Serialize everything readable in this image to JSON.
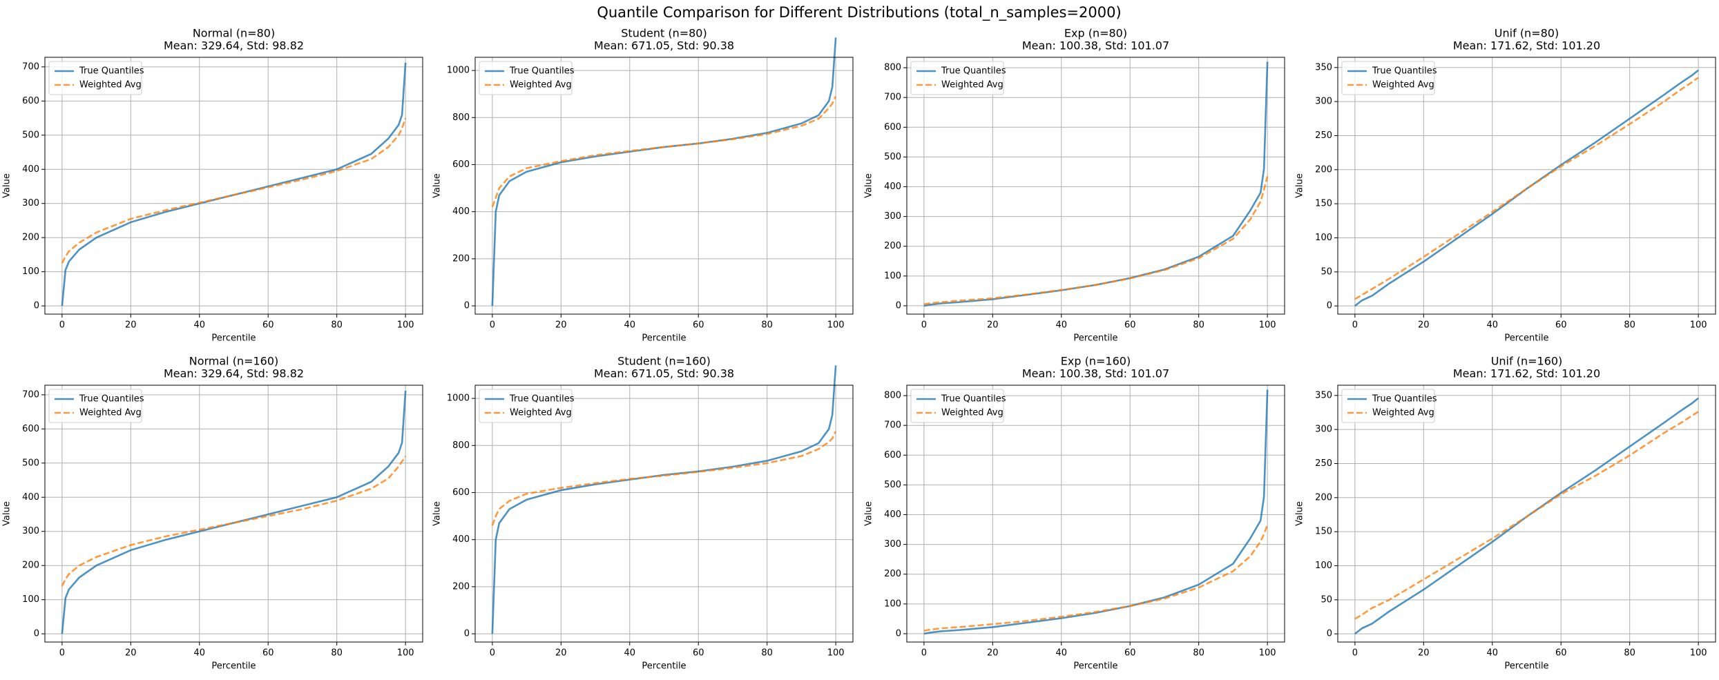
{
  "title": "Quantile Comparison for Different Distributions (total_n_samples=2000)",
  "chart_data": [
    {
      "type": "line",
      "title": "Normal (n=80)",
      "subtitle": "Mean: 329.64, Std: 98.82",
      "x_label": "Percentile",
      "y_label": "Value",
      "x": [
        0,
        1,
        2,
        5,
        10,
        20,
        30,
        40,
        50,
        60,
        70,
        80,
        90,
        95,
        98,
        99,
        100
      ],
      "series": [
        {
          "name": "True Quantiles",
          "color": "#1f77b4",
          "linestyle": "solid",
          "values": [
            0,
            105,
            130,
            165,
            200,
            245,
            275,
            300,
            325,
            350,
            375,
            400,
            445,
            490,
            530,
            560,
            712
          ]
        },
        {
          "name": "Weighted Avg",
          "color": "#ff7f0e",
          "linestyle": "dashed",
          "values": [
            125,
            145,
            160,
            185,
            215,
            255,
            280,
            302,
            325,
            347,
            370,
            395,
            430,
            465,
            500,
            520,
            550
          ]
        }
      ],
      "xlim": [
        -5,
        105
      ],
      "xticks": [
        0,
        20,
        40,
        60,
        80,
        100
      ],
      "ylim": [
        -24,
        728
      ],
      "yticks": [
        0,
        100,
        200,
        300,
        400,
        500,
        600,
        700
      ],
      "grid": true,
      "legend": "upper left"
    },
    {
      "type": "line",
      "title": "Student (n=80)",
      "subtitle": "Mean: 671.05, Std: 90.38",
      "x_label": "Percentile",
      "y_label": "Value",
      "x": [
        0,
        1,
        2,
        5,
        10,
        20,
        30,
        40,
        50,
        60,
        70,
        80,
        90,
        95,
        98,
        99,
        100
      ],
      "series": [
        {
          "name": "True Quantiles",
          "color": "#1f77b4",
          "linestyle": "solid",
          "values": [
            0,
            400,
            470,
            530,
            570,
            610,
            635,
            655,
            675,
            690,
            710,
            735,
            775,
            810,
            870,
            930,
            1140
          ]
        },
        {
          "name": "Weighted Avg",
          "color": "#ff7f0e",
          "linestyle": "dashed",
          "values": [
            420,
            460,
            500,
            550,
            585,
            615,
            640,
            658,
            675,
            690,
            708,
            730,
            765,
            795,
            840,
            860,
            890
          ]
        }
      ],
      "xlim": [
        -5,
        105
      ],
      "xticks": [
        0,
        20,
        40,
        60,
        80,
        100
      ],
      "ylim": [
        -35,
        1056
      ],
      "yticks": [
        0,
        200,
        400,
        600,
        800,
        1000
      ],
      "grid": true,
      "legend": "upper left"
    },
    {
      "type": "line",
      "title": "Exp (n=80)",
      "subtitle": "Mean: 100.38, Std: 101.07",
      "x_label": "Percentile",
      "y_label": "Value",
      "x": [
        0,
        1,
        2,
        5,
        10,
        20,
        30,
        40,
        50,
        60,
        70,
        80,
        90,
        95,
        98,
        99,
        100
      ],
      "series": [
        {
          "name": "True Quantiles",
          "color": "#1f77b4",
          "linestyle": "solid",
          "values": [
            0,
            2,
            4,
            8,
            12,
            22,
            37,
            52,
            70,
            93,
            122,
            165,
            235,
            320,
            380,
            460,
            820
          ]
        },
        {
          "name": "Weighted Avg",
          "color": "#ff7f0e",
          "linestyle": "dashed",
          "values": [
            5,
            7,
            9,
            12,
            17,
            25,
            38,
            53,
            70,
            92,
            120,
            160,
            225,
            290,
            350,
            390,
            435
          ]
        }
      ],
      "xlim": [
        -5,
        105
      ],
      "xticks": [
        0,
        20,
        40,
        60,
        80,
        100
      ],
      "ylim": [
        -28,
        835
      ],
      "yticks": [
        0,
        100,
        200,
        300,
        400,
        500,
        600,
        700,
        800
      ],
      "grid": true,
      "legend": "upper left"
    },
    {
      "type": "line",
      "title": "Unif (n=80)",
      "subtitle": "Mean: 171.62, Std: 101.20",
      "x_label": "Percentile",
      "y_label": "Value",
      "x": [
        0,
        1,
        2,
        5,
        10,
        20,
        30,
        40,
        50,
        60,
        70,
        80,
        90,
        95,
        98,
        99,
        100
      ],
      "series": [
        {
          "name": "True Quantiles",
          "color": "#1f77b4",
          "linestyle": "solid",
          "values": [
            0,
            4,
            8,
            15,
            33,
            65,
            100,
            135,
            172,
            207,
            240,
            275,
            310,
            328,
            338,
            342,
            346
          ]
        },
        {
          "name": "Weighted Avg",
          "color": "#ff7f0e",
          "linestyle": "dashed",
          "values": [
            10,
            13,
            16,
            25,
            40,
            72,
            105,
            138,
            172,
            205,
            235,
            267,
            300,
            318,
            328,
            332,
            335
          ]
        }
      ],
      "xlim": [
        -5,
        105
      ],
      "xticks": [
        0,
        20,
        40,
        60,
        80,
        100
      ],
      "ylim": [
        -12,
        365
      ],
      "yticks": [
        0,
        50,
        100,
        150,
        200,
        250,
        300,
        350
      ],
      "grid": true,
      "legend": "upper left"
    },
    {
      "type": "line",
      "title": "Normal (n=160)",
      "subtitle": "Mean: 329.64, Std: 98.82",
      "x_label": "Percentile",
      "y_label": "Value",
      "x": [
        0,
        1,
        2,
        5,
        10,
        20,
        30,
        40,
        50,
        60,
        70,
        80,
        90,
        95,
        98,
        99,
        100
      ],
      "series": [
        {
          "name": "True Quantiles",
          "color": "#1f77b4",
          "linestyle": "solid",
          "values": [
            0,
            105,
            130,
            165,
            200,
            245,
            275,
            300,
            325,
            350,
            375,
            400,
            445,
            490,
            530,
            560,
            712
          ]
        },
        {
          "name": "Weighted Avg",
          "color": "#ff7f0e",
          "linestyle": "dashed",
          "values": [
            140,
            160,
            175,
            200,
            225,
            260,
            285,
            305,
            325,
            345,
            365,
            390,
            425,
            455,
            490,
            505,
            520
          ]
        }
      ],
      "xlim": [
        -5,
        105
      ],
      "xticks": [
        0,
        20,
        40,
        60,
        80,
        100
      ],
      "ylim": [
        -24,
        728
      ],
      "yticks": [
        0,
        100,
        200,
        300,
        400,
        500,
        600,
        700
      ],
      "grid": true,
      "legend": "upper left"
    },
    {
      "type": "line",
      "title": "Student (n=160)",
      "subtitle": "Mean: 671.05, Std: 90.38",
      "x_label": "Percentile",
      "y_label": "Value",
      "x": [
        0,
        1,
        2,
        5,
        10,
        20,
        30,
        40,
        50,
        60,
        70,
        80,
        90,
        95,
        98,
        99,
        100
      ],
      "series": [
        {
          "name": "True Quantiles",
          "color": "#1f77b4",
          "linestyle": "solid",
          "values": [
            0,
            400,
            470,
            530,
            570,
            610,
            635,
            655,
            675,
            690,
            710,
            735,
            775,
            810,
            870,
            930,
            1140
          ]
        },
        {
          "name": "Weighted Avg",
          "color": "#ff7f0e",
          "linestyle": "dashed",
          "values": [
            460,
            500,
            530,
            565,
            595,
            620,
            640,
            658,
            672,
            688,
            705,
            725,
            755,
            785,
            815,
            830,
            860
          ]
        }
      ],
      "xlim": [
        -5,
        105
      ],
      "xticks": [
        0,
        20,
        40,
        60,
        80,
        100
      ],
      "ylim": [
        -35,
        1056
      ],
      "yticks": [
        0,
        200,
        400,
        600,
        800,
        1000
      ],
      "grid": true,
      "legend": "upper left"
    },
    {
      "type": "line",
      "title": "Exp (n=160)",
      "subtitle": "Mean: 100.38, Std: 101.07",
      "x_label": "Percentile",
      "y_label": "Value",
      "x": [
        0,
        1,
        2,
        5,
        10,
        20,
        30,
        40,
        50,
        60,
        70,
        80,
        90,
        95,
        98,
        99,
        100
      ],
      "series": [
        {
          "name": "True Quantiles",
          "color": "#1f77b4",
          "linestyle": "solid",
          "values": [
            0,
            2,
            4,
            8,
            12,
            22,
            37,
            52,
            70,
            93,
            122,
            165,
            235,
            320,
            380,
            460,
            820
          ]
        },
        {
          "name": "Weighted Avg",
          "color": "#ff7f0e",
          "linestyle": "dashed",
          "values": [
            10,
            12,
            14,
            18,
            22,
            32,
            43,
            57,
            73,
            93,
            118,
            155,
            210,
            260,
            310,
            335,
            365
          ]
        }
      ],
      "xlim": [
        -5,
        105
      ],
      "xticks": [
        0,
        20,
        40,
        60,
        80,
        100
      ],
      "ylim": [
        -28,
        835
      ],
      "yticks": [
        0,
        100,
        200,
        300,
        400,
        500,
        600,
        700,
        800
      ],
      "grid": true,
      "legend": "upper left"
    },
    {
      "type": "line",
      "title": "Unif (n=160)",
      "subtitle": "Mean: 171.62, Std: 101.20",
      "x_label": "Percentile",
      "y_label": "Value",
      "x": [
        0,
        1,
        2,
        5,
        10,
        20,
        30,
        40,
        50,
        60,
        70,
        80,
        90,
        95,
        98,
        99,
        100
      ],
      "series": [
        {
          "name": "True Quantiles",
          "color": "#1f77b4",
          "linestyle": "solid",
          "values": [
            0,
            4,
            8,
            15,
            33,
            65,
            100,
            135,
            172,
            207,
            240,
            275,
            310,
            328,
            338,
            342,
            346
          ]
        },
        {
          "name": "Weighted Avg",
          "color": "#ff7f0e",
          "linestyle": "dashed",
          "values": [
            22,
            25,
            28,
            38,
            50,
            80,
            110,
            140,
            172,
            205,
            232,
            262,
            295,
            310,
            320,
            323,
            326
          ]
        }
      ],
      "xlim": [
        -5,
        105
      ],
      "xticks": [
        0,
        20,
        40,
        60,
        80,
        100
      ],
      "ylim": [
        -12,
        365
      ],
      "yticks": [
        0,
        50,
        100,
        150,
        200,
        250,
        300,
        350
      ],
      "grid": true,
      "legend": "upper left"
    }
  ]
}
